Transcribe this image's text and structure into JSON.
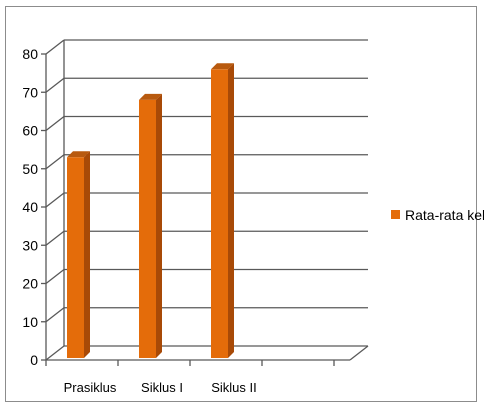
{
  "chart_data": {
    "type": "bar",
    "categories": [
      "Prasiklus",
      "Siklus I",
      "Siklus II"
    ],
    "series": [
      {
        "name": "Rata-rata kelas",
        "values": [
          53,
          68,
          76
        ]
      }
    ],
    "ylim": [
      0,
      80
    ],
    "yticks": [
      0,
      10,
      20,
      30,
      40,
      50,
      60,
      70,
      80
    ],
    "grid": true,
    "legend": "right",
    "colors": {
      "bar_front": "#E46C0A",
      "bar_side": "#A84A07",
      "bar_top": "#B85A0F",
      "grid": "#595959"
    }
  }
}
